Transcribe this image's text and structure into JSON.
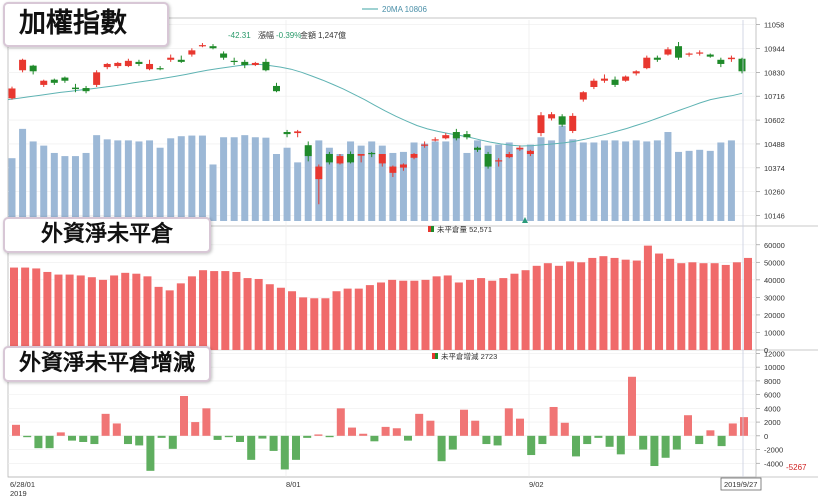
{
  "labels": {
    "panel1": "加權指數",
    "panel2": "外資淨未平倉",
    "panel3": "外資淨未平倉增減"
  },
  "legends": {
    "top_ma": "20MA 10806",
    "info_change": "-42.31",
    "info_pct_label": "漲幅",
    "info_pct": "-0.39%",
    "info_amount_label": "金額",
    "info_amount": "1,247億",
    "oi": "未平倉量 52,571",
    "oi_change": "未平倉增減 2723"
  },
  "x_labels": {
    "start": "6/28/01",
    "year": "2019",
    "aug": "8/01",
    "sep": "9/02",
    "end": "2019/9/27"
  },
  "highlight_value": "-5267",
  "colors": {
    "up": "#e8372f",
    "down": "#1f8a2a",
    "volume": "#9cb8d6",
    "ma": "#5fb3b3",
    "oi": "#f06a6a",
    "chg_up": "#f07575",
    "chg_down": "#5fae5f"
  },
  "chart_data": [
    {
      "type": "candlestick",
      "title": "加權指數",
      "y_ticks": [
        10146,
        10260,
        10374,
        10488,
        10602,
        10716,
        10830,
        10944,
        11058
      ],
      "ylim": [
        10120,
        11080
      ],
      "ohlc": [
        [
          10706,
          10762,
          10700,
          10753
        ],
        [
          10840,
          10895,
          10830,
          10890
        ],
        [
          10862,
          10866,
          10820,
          10835
        ],
        [
          10770,
          10795,
          10760,
          10790
        ],
        [
          10795,
          10800,
          10770,
          10780
        ],
        [
          10805,
          10810,
          10780,
          10790
        ],
        [
          10757,
          10775,
          10735,
          10750
        ],
        [
          10755,
          10765,
          10730,
          10740
        ],
        [
          10770,
          10840,
          10760,
          10830
        ],
        [
          10855,
          10875,
          10845,
          10870
        ],
        [
          10860,
          10880,
          10850,
          10875
        ],
        [
          10860,
          10895,
          10855,
          10885
        ],
        [
          10880,
          10890,
          10860,
          10870
        ],
        [
          10845,
          10890,
          10840,
          10870
        ],
        [
          10850,
          10860,
          10840,
          10845
        ],
        [
          10890,
          10915,
          10880,
          10900
        ],
        [
          10890,
          10910,
          10875,
          10880
        ],
        [
          10915,
          10945,
          10905,
          10935
        ],
        [
          10960,
          10970,
          10950,
          10960
        ],
        [
          10955,
          10965,
          10940,
          10945
        ],
        [
          10920,
          10930,
          10890,
          10900
        ],
        [
          10885,
          10900,
          10865,
          10880
        ],
        [
          10880,
          10890,
          10850,
          10865
        ],
        [
          10865,
          10880,
          10860,
          10875
        ],
        [
          10880,
          10895,
          10835,
          10840
        ],
        [
          10765,
          10780,
          10735,
          10740
        ],
        [
          10545,
          10555,
          10520,
          10535
        ],
        [
          10540,
          10555,
          10520,
          10548
        ],
        [
          10482,
          10500,
          10405,
          10430
        ],
        [
          10320,
          10390,
          10200,
          10380
        ],
        [
          10440,
          10450,
          10390,
          10400
        ],
        [
          10395,
          10440,
          10390,
          10430
        ],
        [
          10440,
          10452,
          10395,
          10400
        ],
        [
          10432,
          10440,
          10400,
          10440
        ],
        [
          10445,
          10450,
          10425,
          10440
        ],
        [
          10395,
          10440,
          10380,
          10440
        ],
        [
          10350,
          10385,
          10330,
          10380
        ],
        [
          10375,
          10395,
          10360,
          10390
        ],
        [
          10422,
          10445,
          10415,
          10440
        ],
        [
          10484,
          10500,
          10470,
          10485
        ],
        [
          10510,
          10520,
          10500,
          10510
        ],
        [
          10515,
          10540,
          10510,
          10530
        ],
        [
          10545,
          10560,
          10505,
          10515
        ],
        [
          10535,
          10550,
          10510,
          10520
        ],
        [
          10470,
          10475,
          10450,
          10460
        ],
        [
          10440,
          10450,
          10370,
          10380
        ],
        [
          10405,
          10420,
          10380,
          10410
        ],
        [
          10425,
          10450,
          10420,
          10440
        ],
        [
          10462,
          10480,
          10455,
          10470
        ],
        [
          10440,
          10460,
          10430,
          10455
        ],
        [
          10540,
          10640,
          10525,
          10625
        ],
        [
          10610,
          10640,
          10600,
          10630
        ],
        [
          10620,
          10630,
          10570,
          10580
        ],
        [
          10550,
          10635,
          10540,
          10622
        ],
        [
          10700,
          10740,
          10690,
          10735
        ],
        [
          10760,
          10800,
          10750,
          10790
        ],
        [
          10790,
          10820,
          10780,
          10800
        ],
        [
          10795,
          10810,
          10760,
          10770
        ],
        [
          10790,
          10815,
          10785,
          10810
        ],
        [
          10825,
          10840,
          10815,
          10835
        ],
        [
          10850,
          10910,
          10845,
          10900
        ],
        [
          10900,
          10910,
          10880,
          10890
        ],
        [
          10915,
          10950,
          10910,
          10940
        ],
        [
          10955,
          10975,
          10890,
          10900
        ],
        [
          10915,
          10925,
          10905,
          10920
        ],
        [
          10920,
          10935,
          10910,
          10925
        ],
        [
          10915,
          10920,
          10900,
          10905
        ],
        [
          10890,
          10900,
          10855,
          10870
        ],
        [
          10893,
          10910,
          10880,
          10900
        ],
        [
          10895,
          10900,
          10825,
          10835
        ]
      ],
      "ma20": [
        10700,
        10706,
        10713,
        10720,
        10727,
        10734,
        10740,
        10746,
        10752,
        10758,
        10765,
        10772,
        10780,
        10787,
        10795,
        10803,
        10811,
        10820,
        10830,
        10840,
        10848,
        10855,
        10862,
        10866,
        10868,
        10862,
        10855,
        10845,
        10830,
        10812,
        10793,
        10772,
        10750,
        10725,
        10700,
        10672,
        10645,
        10620,
        10597,
        10576,
        10560,
        10548,
        10538,
        10530,
        10520,
        10508,
        10497,
        10488,
        10482,
        10478,
        10480,
        10484,
        10488,
        10493,
        10500,
        10510,
        10522,
        10534,
        10548,
        10562,
        10578,
        10594,
        10612,
        10630,
        10648,
        10666,
        10684,
        10700,
        10710,
        10718,
        10730
      ],
      "volume": [
        10420,
        10560,
        10500,
        10480,
        10445,
        10430,
        10430,
        10445,
        10530,
        10510,
        10505,
        10505,
        10500,
        10505,
        10470,
        10515,
        10525,
        10528,
        10528,
        10390,
        10520,
        10520,
        10530,
        10520,
        10518,
        10440,
        10470,
        10400,
        10460,
        10505,
        10470,
        10440,
        10500,
        10480,
        10500,
        10480,
        10445,
        10450,
        10495,
        10490,
        10500,
        10500,
        10525,
        10445,
        10505,
        10480,
        10485,
        10495,
        10470,
        10485,
        10520,
        10505,
        10575,
        10510,
        10495,
        10495,
        10505,
        10505,
        10500,
        10505,
        10500,
        10505,
        10545,
        10450,
        10455,
        10460,
        10455,
        10495,
        10505
      ]
    },
    {
      "type": "bar",
      "title": "外資淨未平倉",
      "legend": "未平倉量 52,571",
      "y_ticks": [
        0,
        10000,
        20000,
        30000,
        40000,
        50000,
        60000
      ],
      "ylim": [
        0,
        65000
      ],
      "values": [
        47000,
        47000,
        46500,
        44500,
        43000,
        43000,
        42500,
        41500,
        40000,
        42500,
        44000,
        43500,
        42000,
        36000,
        34000,
        38000,
        42000,
        45500,
        45000,
        45000,
        44500,
        41000,
        40500,
        37500,
        35500,
        33500,
        30000,
        29500,
        29500,
        33500,
        35000,
        35000,
        37000,
        38500,
        40000,
        39500,
        39500,
        40000,
        42000,
        42500,
        38500,
        40000,
        41000,
        39500,
        41000,
        43500,
        45500,
        48000,
        49500,
        48000,
        50500,
        50000,
        52500,
        53500,
        52500,
        51500,
        51000,
        59500,
        55000,
        52000,
        49500,
        50000,
        49500,
        49500,
        48500,
        50000,
        52500
      ]
    },
    {
      "type": "bar",
      "title": "外資淨未平倉增減",
      "legend": "未平倉增減 2723",
      "y_ticks": [
        -4000,
        -2000,
        0,
        2000,
        4000,
        6000,
        8000,
        10000,
        12000
      ],
      "ylim": [
        -6000,
        12500
      ],
      "values": [
        1600,
        -200,
        -1800,
        -1800,
        500,
        -700,
        -900,
        -1200,
        3200,
        1800,
        -1200,
        -1400,
        -5100,
        -300,
        -1900,
        5800,
        2000,
        4000,
        -600,
        -200,
        -900,
        -3500,
        -400,
        -2200,
        -4900,
        -3500,
        -300,
        200,
        -200,
        4000,
        1200,
        300,
        -800,
        1300,
        1100,
        -700,
        3200,
        2200,
        -3700,
        -2000,
        3800,
        2200,
        -1200,
        -1400,
        4000,
        2500,
        -2800,
        -1200,
        4200,
        1900,
        -3000,
        -1200,
        -300,
        -1600,
        -2700,
        8600,
        -2000,
        -4400,
        -3200,
        -2000,
        3000,
        -1200,
        800,
        -1500,
        1800,
        2723
      ]
    }
  ]
}
